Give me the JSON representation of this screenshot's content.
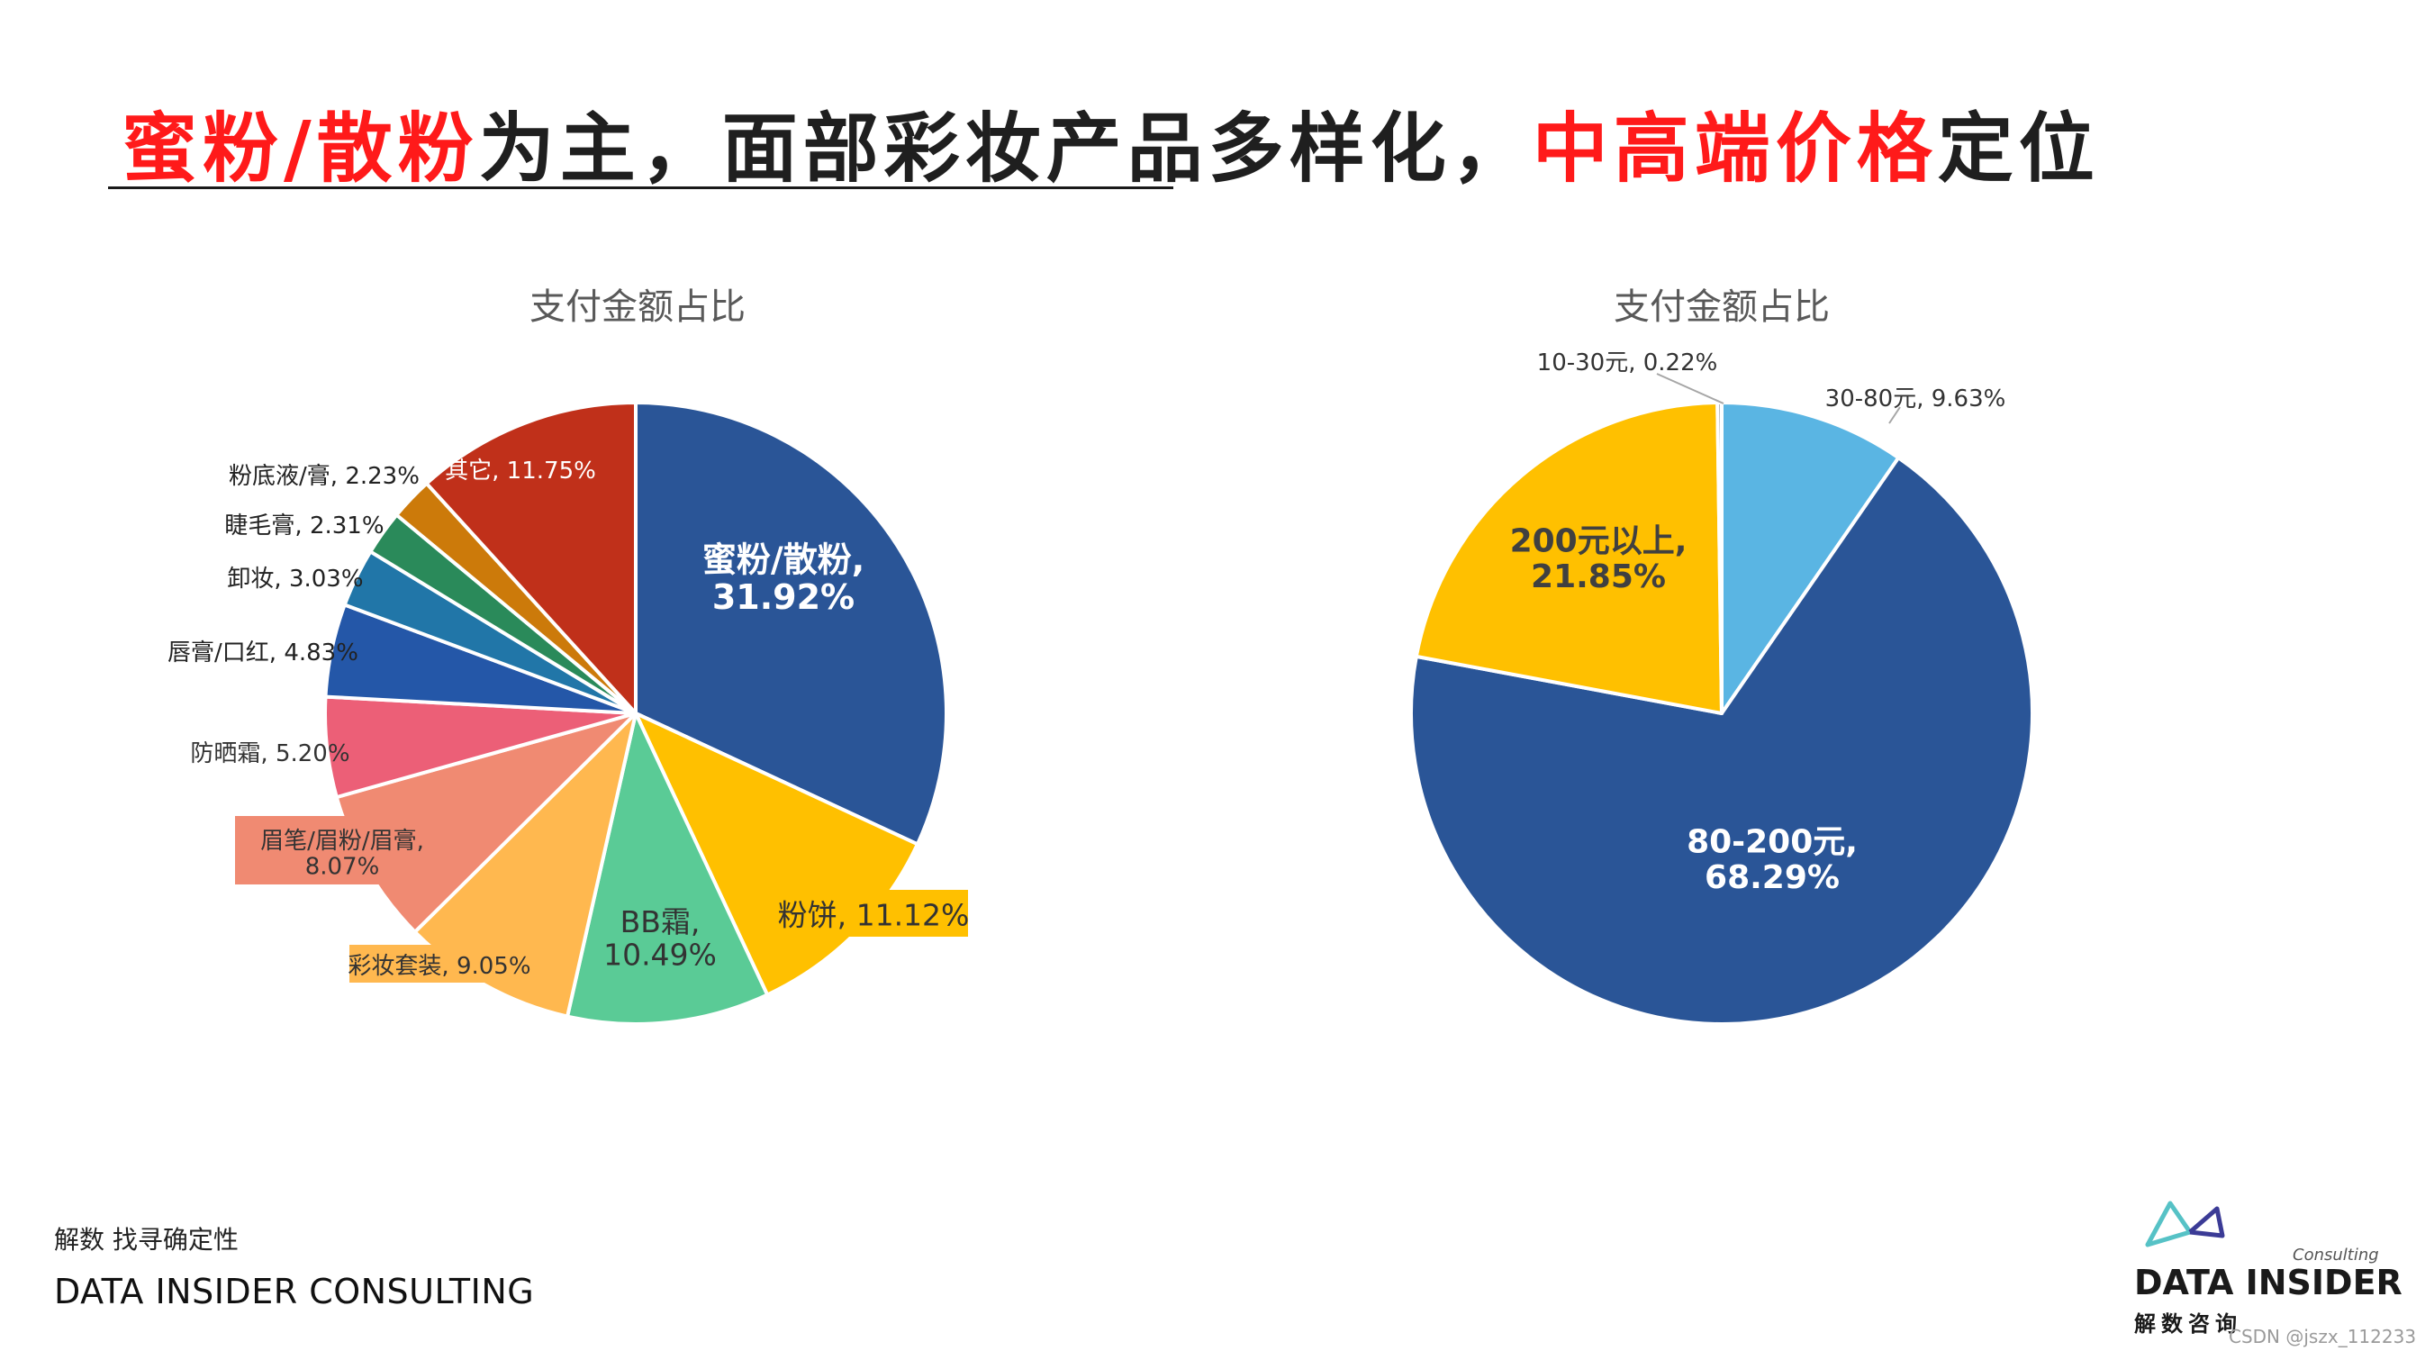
{
  "headline": {
    "part1": "蜜粉/散粉",
    "part2": "为主，面部彩妆产品多样化，",
    "part3": "中高端价格",
    "part4": "定位"
  },
  "colors": {
    "headline_red": "#ff1a1a"
  },
  "chart_data": [
    {
      "type": "pie",
      "title": "支付金额占比",
      "slices": [
        {
          "label": "蜜粉/散粉",
          "value": 31.92,
          "text": "31.92%",
          "color": "#2a5597"
        },
        {
          "label": "粉饼",
          "value": 11.12,
          "text": "11.12%",
          "color": "#ffc000"
        },
        {
          "label": "BB霜",
          "value": 10.49,
          "text": "10.49%",
          "color": "#5acb96"
        },
        {
          "label": "彩妆套装",
          "value": 9.05,
          "text": "9.05%",
          "color": "#ffb84f"
        },
        {
          "label": "眉笔/眉粉/眉膏",
          "value": 8.07,
          "text": "8.07%",
          "color": "#f08a72"
        },
        {
          "label": "防晒霜",
          "value": 5.2,
          "text": "5.20%",
          "color": "#ec5f77"
        },
        {
          "label": "唇膏/口红",
          "value": 4.83,
          "text": "4.83%",
          "color": "#2457a8"
        },
        {
          "label": "卸妆",
          "value": 3.03,
          "text": "3.03%",
          "color": "#2176a8"
        },
        {
          "label": "睫毛膏",
          "value": 2.31,
          "text": "2.31%",
          "color": "#2a8a5a"
        },
        {
          "label": "粉底液/膏",
          "value": 2.23,
          "text": "2.23%",
          "color": "#cc7a0a"
        },
        {
          "label": "其它",
          "value": 11.75,
          "text": "11.75%",
          "color": "#c0301a"
        }
      ]
    },
    {
      "type": "pie",
      "title": "支付金额占比",
      "slices": [
        {
          "label": "30-80元",
          "value": 9.63,
          "text": "9.63%",
          "color": "#5ab5e3"
        },
        {
          "label": "80-200元",
          "value": 68.29,
          "text": "68.29%",
          "color": "#2a5597"
        },
        {
          "label": "200元以上",
          "value": 21.85,
          "text": "21.85%",
          "color": "#ffc000"
        },
        {
          "label": "10-30元",
          "value": 0.22,
          "text": "0.22%",
          "color": "#9a9a9a"
        }
      ]
    }
  ],
  "footer": {
    "slogan": "解数 找寻确定性",
    "company": "DATA INSIDER CONSULTING"
  },
  "logo": {
    "consulting": "Consulting",
    "brand": "DATA INSIDER",
    "brand_cn": "解数咨询"
  },
  "watermark": "CSDN @jszx_112233"
}
